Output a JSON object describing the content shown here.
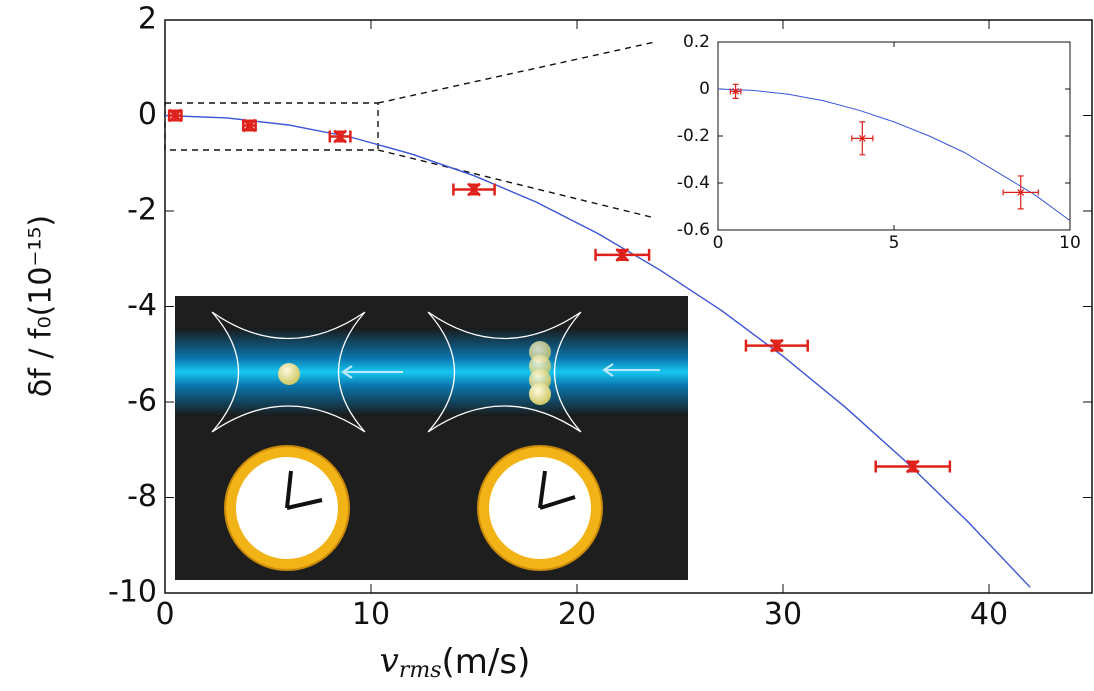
{
  "chart_data": [
    {
      "type": "scatter",
      "x_label": {
        "symbol": "v",
        "subscript": "rms",
        "unit": "(m/s)"
      },
      "y_label": "δf / f₀(10⁻¹⁵)",
      "xlim": [
        0,
        45
      ],
      "xticks": [
        0,
        10,
        20,
        30,
        40
      ],
      "ylim": [
        -10,
        2
      ],
      "yticks": [
        -10,
        -8,
        -6,
        -4,
        -2,
        0,
        2
      ],
      "points": {
        "color": "#e0201a",
        "x": [
          0.5,
          4.1,
          8.5,
          15,
          22.2,
          29.7,
          36.3
        ],
        "y": [
          0.0,
          -0.21,
          -0.44,
          -1.55,
          -2.92,
          -4.82,
          -7.35
        ],
        "xerr": [
          0.3,
          0.3,
          0.5,
          1.0,
          1.3,
          1.5,
          1.8
        ],
        "yerr": [
          0.1,
          0.1,
          0.1,
          0.1,
          0.1,
          0.1,
          0.1
        ]
      },
      "curve": {
        "color": "#3a55d8",
        "x": [
          0,
          3,
          6,
          9,
          12,
          15,
          18,
          21,
          24,
          27,
          30,
          33,
          36,
          39,
          42
        ],
        "y": [
          0,
          -0.05,
          -0.2,
          -0.45,
          -0.81,
          -1.26,
          -1.81,
          -2.47,
          -3.23,
          -4.08,
          -5.04,
          -6.1,
          -7.26,
          -8.52,
          -9.88
        ]
      }
    },
    {
      "type": "scatter",
      "xlim": [
        0,
        10
      ],
      "xticks": [
        0,
        5,
        10
      ],
      "ylim": [
        -0.6,
        0.2
      ],
      "yticks": [
        -0.6,
        -0.4,
        -0.2,
        0,
        0.2
      ],
      "points": {
        "color": "#e0201a",
        "x": [
          0.5,
          4.1,
          8.6
        ],
        "y": [
          -0.01,
          -0.21,
          -0.44
        ],
        "xerr": [
          0.15,
          0.3,
          0.5
        ],
        "yerr": [
          0.03,
          0.07,
          0.07
        ]
      },
      "curve": {
        "color": "#3a55d8",
        "x": [
          0,
          1,
          2,
          3,
          4,
          5,
          6,
          7,
          8,
          9,
          10
        ],
        "y": [
          0,
          -0.006,
          -0.022,
          -0.05,
          -0.09,
          -0.14,
          -0.2,
          -0.27,
          -0.36,
          -0.45,
          -0.56
        ]
      }
    }
  ]
}
